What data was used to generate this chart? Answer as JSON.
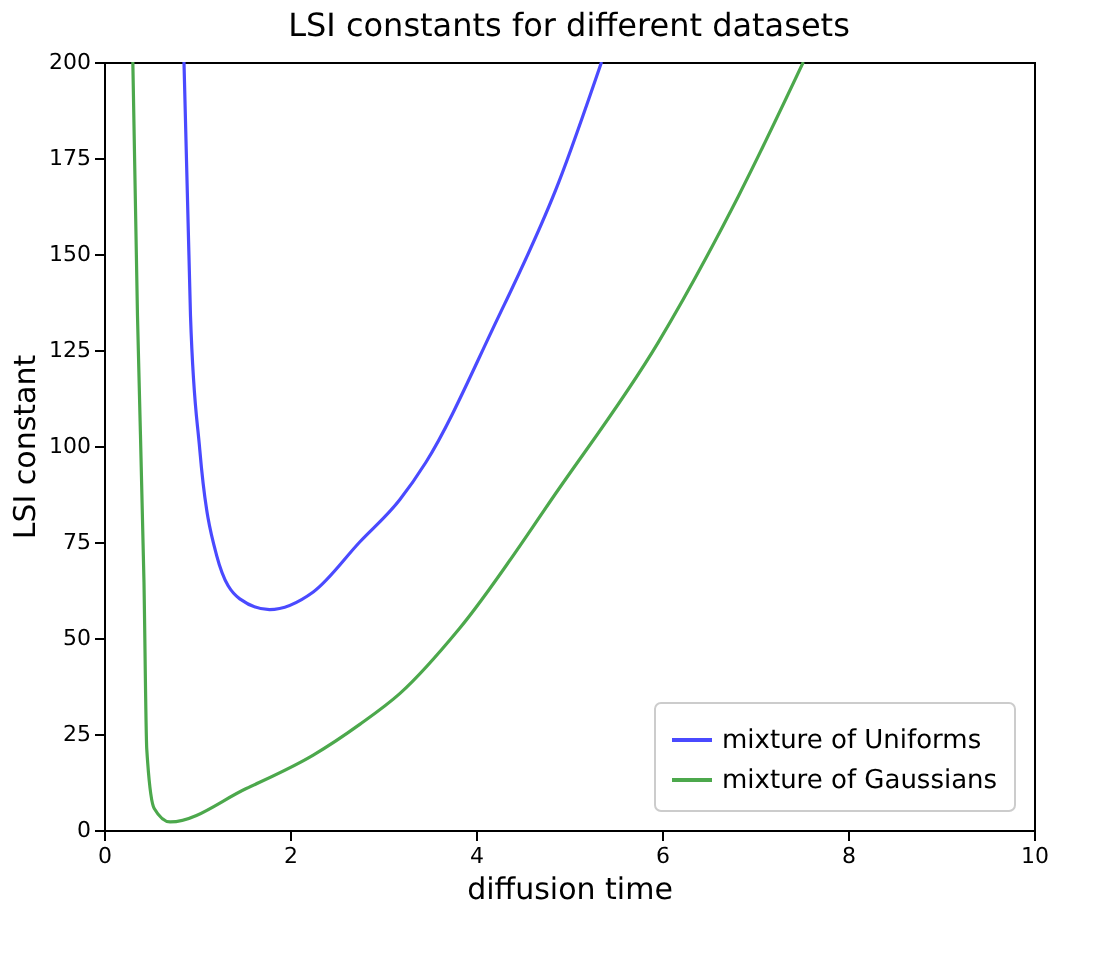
{
  "chart_data": {
    "type": "line",
    "title": "LSI constants for different datasets",
    "xlabel": "diffusion time",
    "ylabel": "LSI constant",
    "xlim": [
      0,
      10
    ],
    "ylim": [
      0,
      200
    ],
    "xticks": [
      0,
      2,
      4,
      6,
      8,
      10
    ],
    "yticks": [
      0,
      25,
      50,
      75,
      100,
      125,
      150,
      175,
      200
    ],
    "grid": false,
    "legend": "bottom right",
    "marker": "none",
    "line_style": "solid",
    "series": [
      {
        "name": "mixture of Uniforms",
        "color": "#4a4aff",
        "x": [
          0.86,
          0.93,
          1.03,
          1.21,
          1.46,
          1.78,
          2.25,
          2.75,
          3.18,
          3.46,
          4.18,
          4.89,
          5.35
        ],
        "values": [
          200,
          134,
          99,
          71.6,
          60.2,
          57.4,
          62,
          75,
          86,
          95.7,
          130.5,
          168.7,
          200
        ]
      },
      {
        "name": "mixture of Gaussians",
        "color": "#4ca84c",
        "x": [
          0.31,
          0.36,
          0.43,
          0.46,
          0.54,
          0.71,
          1.53,
          2.25,
          2.75,
          3.18,
          3.82,
          4.89,
          5.96,
          6.82,
          7.52
        ],
        "values": [
          200,
          134,
          64.5,
          21,
          5.6,
          2.1,
          10.8,
          19.5,
          27.5,
          35.5,
          52.4,
          88.8,
          127,
          165,
          200
        ]
      }
    ]
  }
}
